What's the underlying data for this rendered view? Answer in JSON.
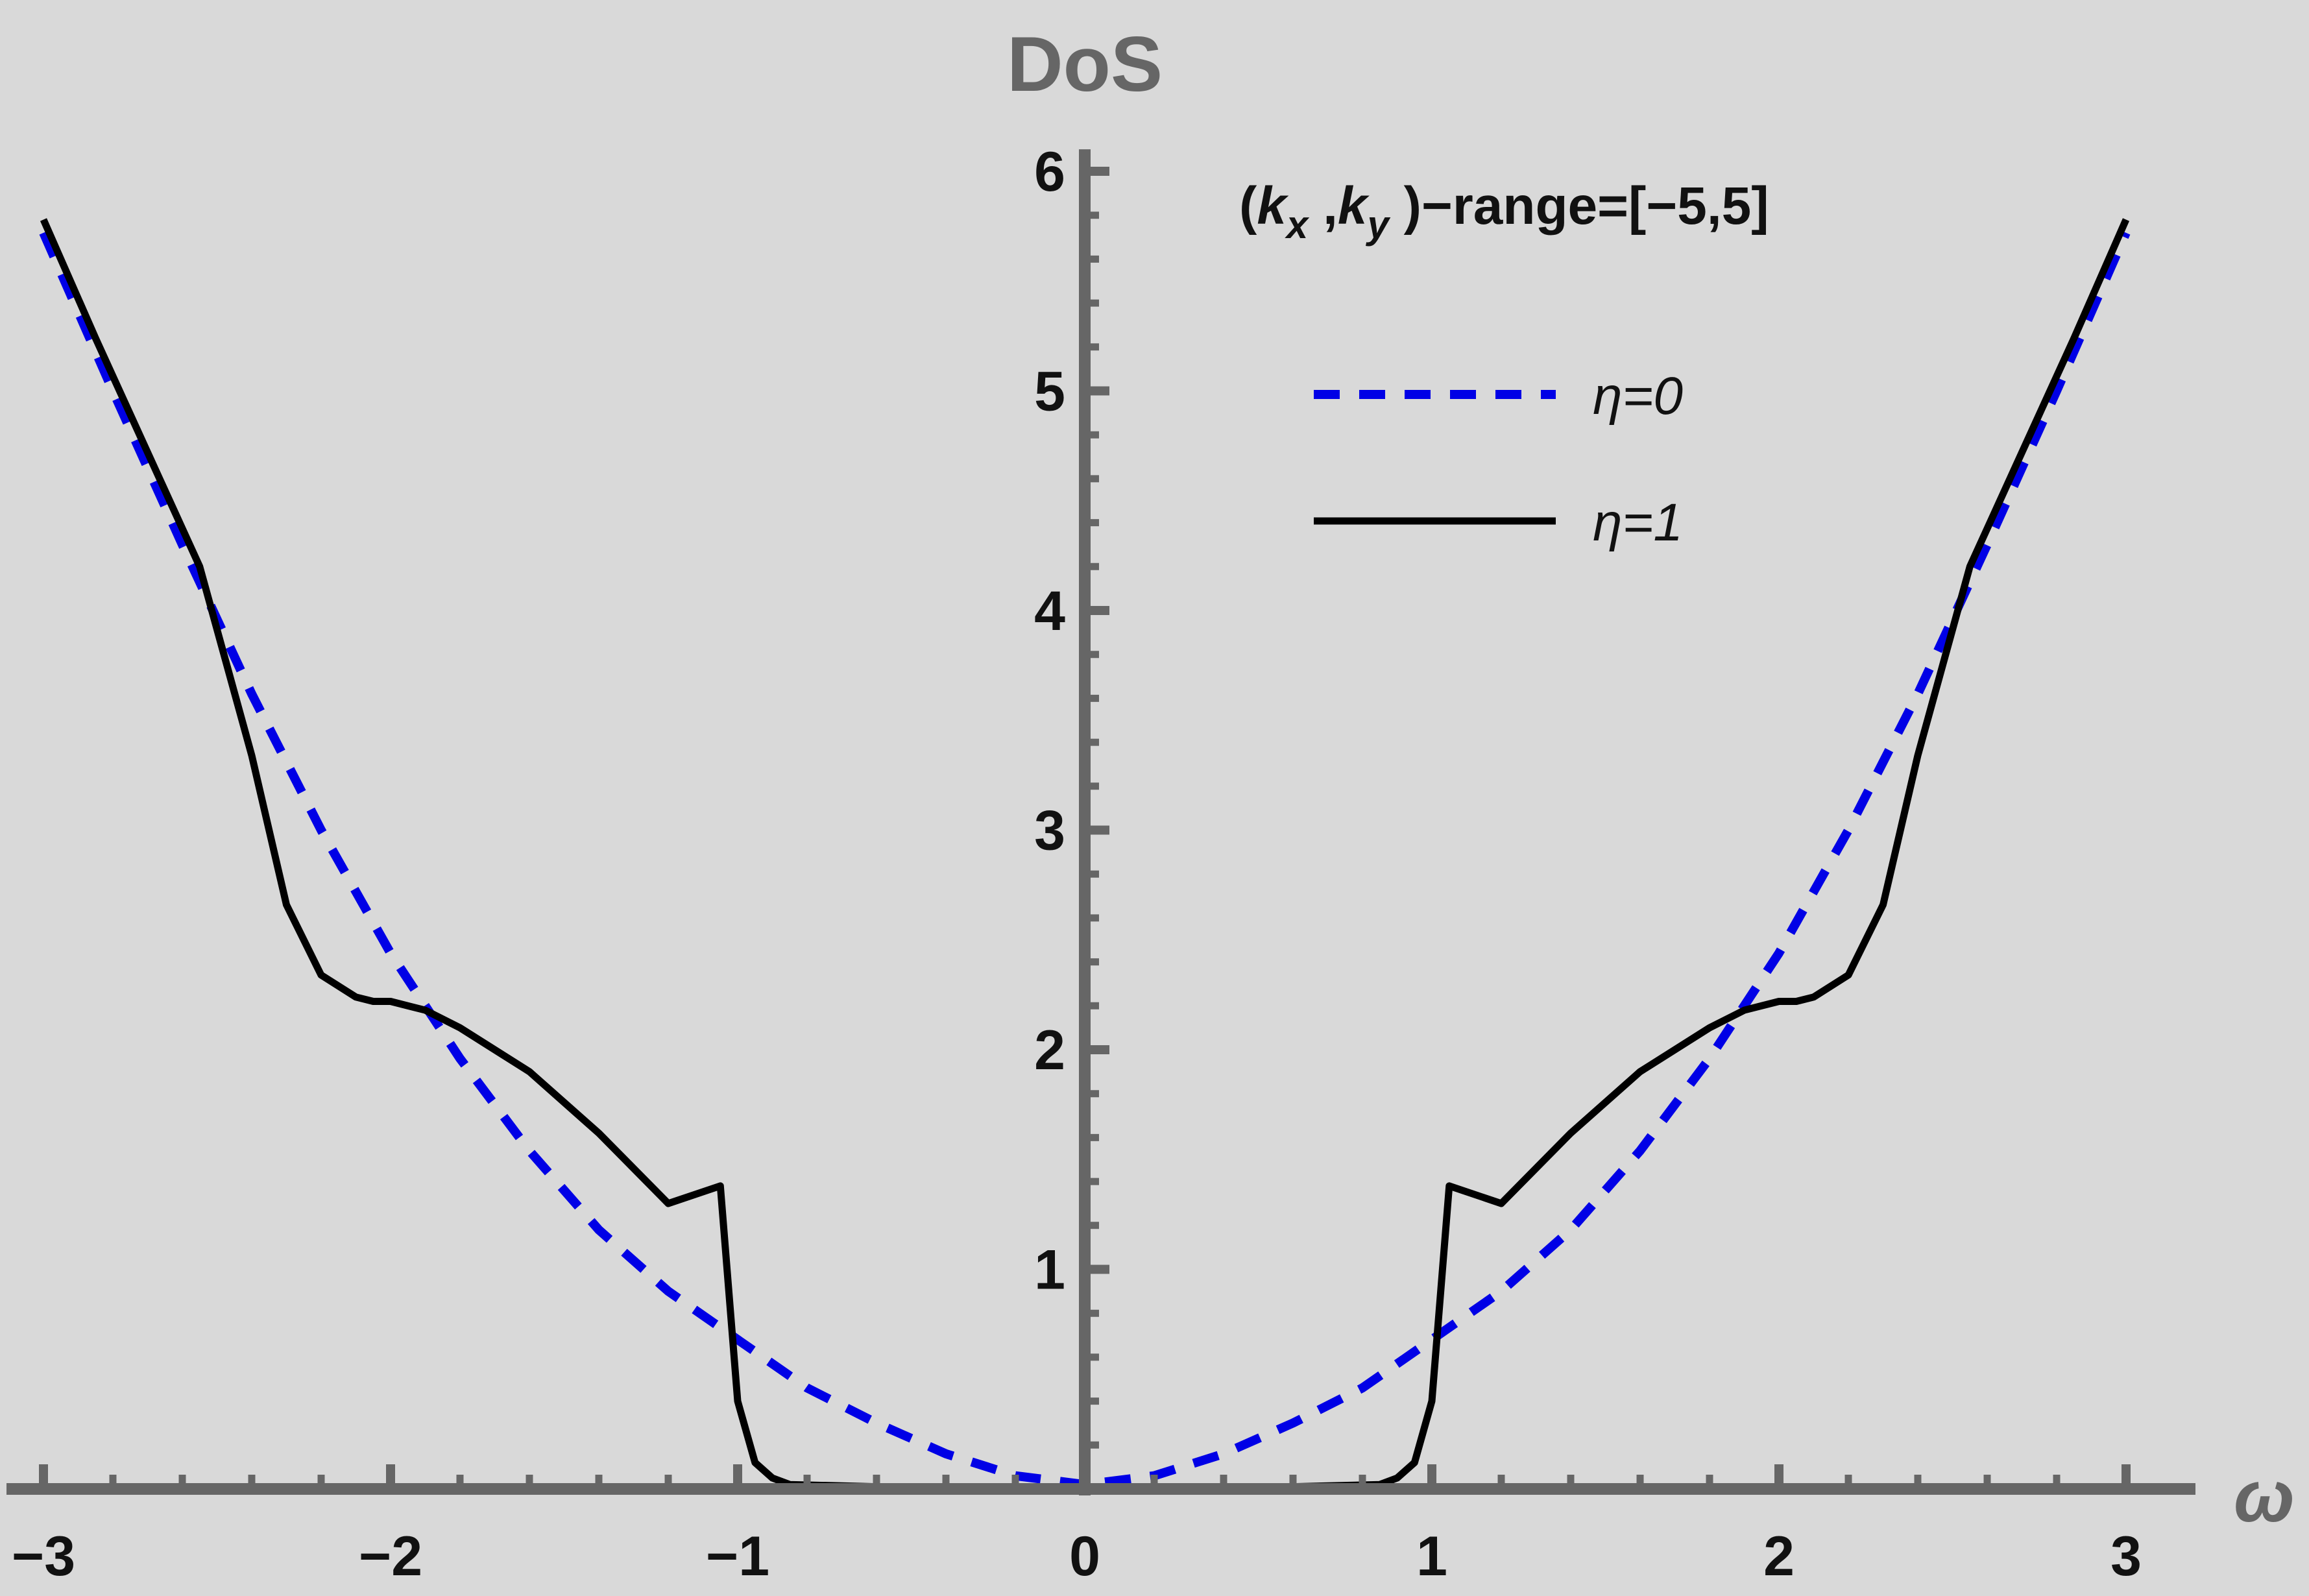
{
  "chart_data": {
    "type": "line",
    "title": "",
    "xlabel": "ω",
    "ylabel": "DoS",
    "xlim": [
      -3.1,
      3.3
    ],
    "ylim": [
      0,
      6.1
    ],
    "x_ticks": [
      -3,
      -2,
      -1,
      0,
      1,
      2,
      3
    ],
    "x_tick_labels": [
      "−3",
      "−2",
      "−1",
      "0",
      "1",
      "2",
      "3"
    ],
    "y_ticks": [
      1,
      2,
      3,
      4,
      5,
      6
    ],
    "y_tick_labels": [
      "1",
      "2",
      "3",
      "4",
      "5",
      "6"
    ],
    "annotation": {
      "open": "(",
      "kx_base": "k",
      "kx_sub": "x",
      "sep": " ,",
      "ky_base": "k",
      "ky_sub": "y",
      "rest": " )−range=[−5,5]"
    },
    "legend": {
      "position": "top-right"
    },
    "grid": false,
    "colors": {
      "background": "#d9d9d9",
      "axis": "#666666",
      "eta0": "#0000e6",
      "eta1": "#000000"
    },
    "series": [
      {
        "name": "η=0",
        "style": "dashed",
        "x": [
          -3.0,
          -2.8,
          -2.6,
          -2.4,
          -2.2,
          -2.0,
          -1.8,
          -1.6,
          -1.4,
          -1.2,
          -1.0,
          -0.8,
          -0.6,
          -0.4,
          -0.2,
          0.0,
          0.2,
          0.4,
          0.6,
          0.8,
          1.0,
          1.2,
          1.4,
          1.6,
          1.8,
          2.0,
          2.2,
          2.4,
          2.6,
          2.8,
          3.0
        ],
        "values": [
          5.72,
          5.0,
          4.3,
          3.62,
          3.0,
          2.44,
          1.96,
          1.54,
          1.18,
          0.9,
          0.68,
          0.46,
          0.3,
          0.16,
          0.06,
          0.02,
          0.06,
          0.16,
          0.3,
          0.46,
          0.68,
          0.9,
          1.18,
          1.54,
          1.96,
          2.44,
          3.0,
          3.62,
          4.3,
          5.0,
          5.72
        ]
      },
      {
        "name": "η=1",
        "style": "solid",
        "x": [
          -3.0,
          -2.85,
          -2.7,
          -2.55,
          -2.4,
          -2.3,
          -2.2,
          -2.1,
          -2.05,
          -2.0,
          -1.9,
          -1.8,
          -1.6,
          -1.4,
          -1.2,
          -1.05,
          -1.0,
          -0.95,
          -0.9,
          -0.85,
          -0.6,
          -0.3,
          0.0,
          0.3,
          0.6,
          0.85,
          0.9,
          0.95,
          1.0,
          1.05,
          1.2,
          1.4,
          1.6,
          1.8,
          1.9,
          2.0,
          2.05,
          2.1,
          2.2,
          2.3,
          2.4,
          2.55,
          2.7,
          2.85,
          3.0
        ],
        "values": [
          5.78,
          5.24,
          4.72,
          4.2,
          3.34,
          2.66,
          2.34,
          2.24,
          2.22,
          2.22,
          2.18,
          2.1,
          1.9,
          1.62,
          1.3,
          1.38,
          0.4,
          0.12,
          0.05,
          0.02,
          0.01,
          0.01,
          0.01,
          0.01,
          0.01,
          0.02,
          0.05,
          0.12,
          0.4,
          1.38,
          1.3,
          1.62,
          1.9,
          2.1,
          2.18,
          2.22,
          2.22,
          2.24,
          2.34,
          2.66,
          3.34,
          4.2,
          4.72,
          5.24,
          5.78
        ]
      }
    ]
  }
}
